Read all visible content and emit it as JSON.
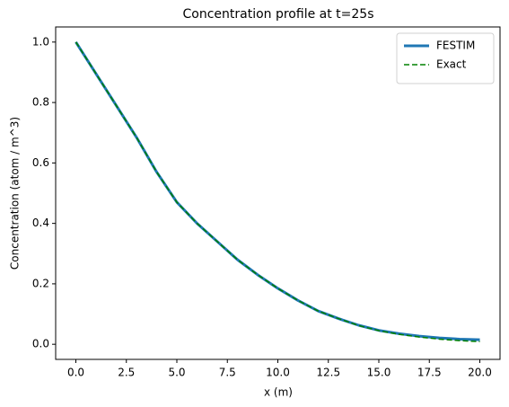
{
  "chart_data": {
    "type": "line",
    "title": "Concentration profile at t=25s",
    "xlabel": "x (m)",
    "ylabel": "Concentration (atom / m^3)",
    "x": [
      0,
      1,
      2,
      3,
      4,
      5,
      6,
      7,
      8,
      9,
      10,
      11,
      12,
      13,
      14,
      15,
      16,
      17,
      18,
      19,
      20
    ],
    "series": [
      {
        "name": "FESTIM",
        "color": "#1f77b4",
        "linestyle": "solid",
        "linewidth": 3,
        "values": [
          1.0,
          0.895,
          0.79,
          0.685,
          0.57,
          0.47,
          0.4,
          0.34,
          0.28,
          0.23,
          0.185,
          0.145,
          0.11,
          0.085,
          0.063,
          0.046,
          0.035,
          0.027,
          0.021,
          0.017,
          0.015
        ]
      },
      {
        "name": "Exact",
        "color": "#008000",
        "linestyle": "dashed",
        "linewidth": 1.5,
        "values": [
          1.0,
          0.895,
          0.79,
          0.685,
          0.57,
          0.47,
          0.4,
          0.34,
          0.28,
          0.23,
          0.185,
          0.145,
          0.11,
          0.085,
          0.062,
          0.045,
          0.033,
          0.024,
          0.017,
          0.012,
          0.009
        ]
      }
    ],
    "xlim": [
      -1,
      21
    ],
    "ylim": [
      -0.05,
      1.05
    ],
    "xticks": [
      {
        "value": 0,
        "label": "0.0"
      },
      {
        "value": 2.5,
        "label": "2.5"
      },
      {
        "value": 5,
        "label": "5.0"
      },
      {
        "value": 7.5,
        "label": "7.5"
      },
      {
        "value": 10,
        "label": "10.0"
      },
      {
        "value": 12.5,
        "label": "12.5"
      },
      {
        "value": 15,
        "label": "15.0"
      },
      {
        "value": 17.5,
        "label": "17.5"
      },
      {
        "value": 20,
        "label": "20.0"
      }
    ],
    "yticks": [
      {
        "value": 0,
        "label": "0.0"
      },
      {
        "value": 0.2,
        "label": "0.2"
      },
      {
        "value": 0.4,
        "label": "0.4"
      },
      {
        "value": 0.6,
        "label": "0.6"
      },
      {
        "value": 0.8,
        "label": "0.8"
      },
      {
        "value": 1,
        "label": "1.0"
      }
    ],
    "grid": false,
    "legend": "upper right"
  }
}
